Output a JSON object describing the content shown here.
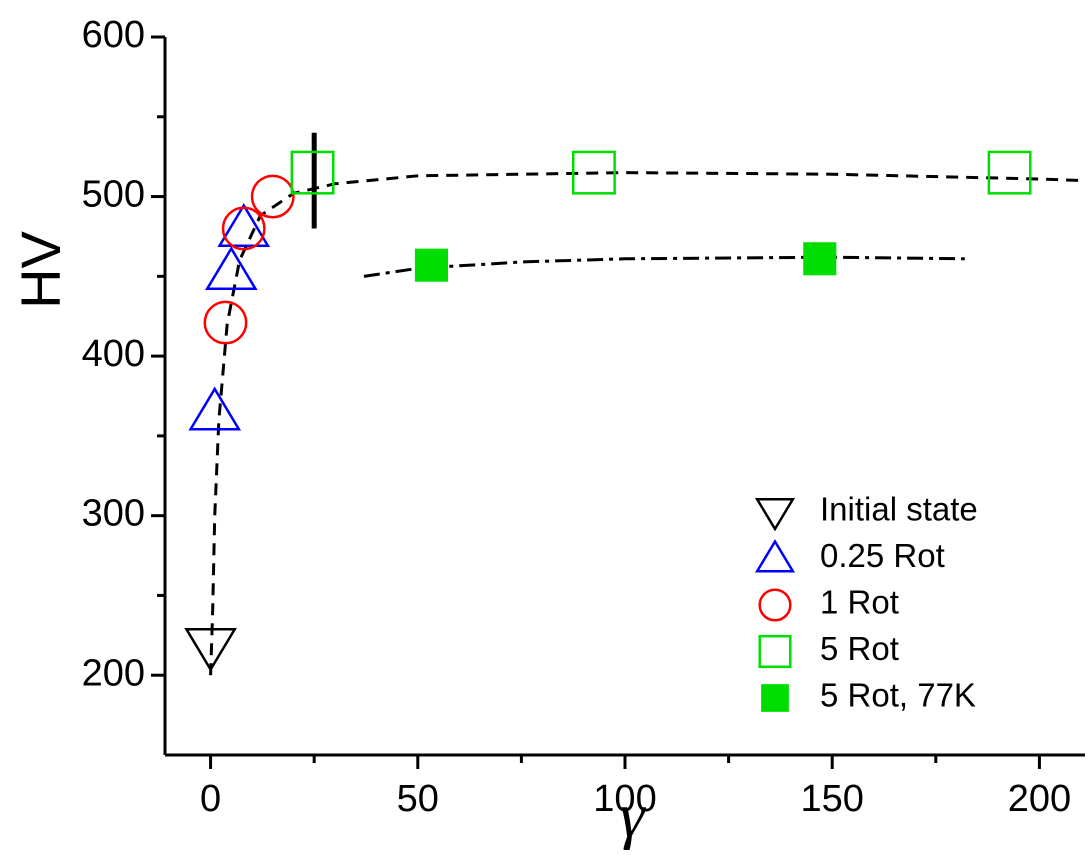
{
  "chart_data": {
    "type": "scatter",
    "x_label": "γ",
    "y_label": "HV",
    "xlim": [
      -11,
      211
    ],
    "ylim": [
      150,
      600
    ],
    "xticks": [
      0,
      50,
      100,
      150,
      200
    ],
    "yticks": [
      200,
      300,
      400,
      500,
      600
    ],
    "legend": "lower right",
    "series": [
      {
        "name": "Initial state",
        "color": "#000000",
        "marker": "triangle-down",
        "filled": false,
        "x": [
          0
        ],
        "values": [
          218
        ]
      },
      {
        "name": "0.25 Rot",
        "color": "#0000ff",
        "marker": "triangle",
        "filled": false,
        "x": [
          1,
          5,
          8
        ],
        "values": [
          365,
          453,
          480
        ]
      },
      {
        "name": "1 Rot",
        "color": "#ff0000",
        "marker": "circle",
        "filled": false,
        "x": [
          3.6,
          8,
          15
        ],
        "values": [
          421,
          480,
          500
        ]
      },
      {
        "name": "5 Rot",
        "color": "#00dd00",
        "marker": "square",
        "filled": false,
        "x": [
          24.6,
          92.5,
          192.8
        ],
        "values": [
          515,
          515,
          515
        ]
      },
      {
        "name": "5 Rot, 77K",
        "color": "#00dd00",
        "marker": "square",
        "filled": true,
        "x": [
          53.3,
          147
        ],
        "values": [
          457,
          461
        ]
      }
    ],
    "curves": [
      {
        "dash": "12,8",
        "x": [
          0,
          0.5,
          1,
          2,
          4,
          7,
          12,
          20,
          30,
          50,
          100,
          150,
          200,
          211
        ],
        "values": [
          200,
          240,
          300,
          360,
          420,
          460,
          488,
          502,
          508,
          513,
          515,
          514,
          511,
          510
        ]
      },
      {
        "dash": "16,6,4,6",
        "x": [
          37,
          50,
          75,
          100,
          150,
          182
        ],
        "values": [
          450,
          455,
          459,
          461,
          462,
          461
        ]
      }
    ],
    "marker_line": {
      "x": 25,
      "values": [
        480,
        540
      ]
    }
  }
}
